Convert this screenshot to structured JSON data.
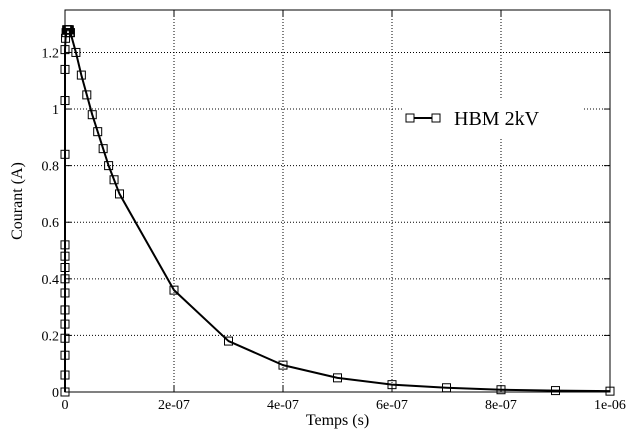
{
  "chart_data": {
    "type": "line",
    "title": "",
    "xlabel": "Temps (s)",
    "ylabel": "Courant (A)",
    "xlim": [
      0,
      1e-06
    ],
    "ylim": [
      0,
      1.35
    ],
    "grid": true,
    "legend_position": "top-right",
    "x_tick_values": [
      0,
      2e-07,
      4e-07,
      6e-07,
      8e-07,
      1e-06
    ],
    "x_tick_labels": [
      "0",
      "2e-07",
      "4e-07",
      "6e-07",
      "8e-07",
      "1e-06"
    ],
    "y_tick_values": [
      0,
      0.2,
      0.4,
      0.6,
      0.8,
      1.0,
      1.2
    ],
    "y_tick_labels": [
      "0",
      "0.2",
      "0.4",
      "0.6",
      "0.8",
      "1",
      "1.2"
    ],
    "series": [
      {
        "name": "HBM 2kV",
        "color": "#000000",
        "marker": "square",
        "x": [
          0,
          0,
          0,
          0,
          0,
          0,
          0,
          0,
          0,
          0,
          0,
          0,
          0,
          0,
          0,
          1e-09,
          2e-09,
          3e-09,
          4e-09,
          5e-09,
          6e-09,
          7e-09,
          8e-09,
          9e-09,
          1e-08,
          2e-08,
          3e-08,
          4e-08,
          5e-08,
          6e-08,
          7e-08,
          8e-08,
          9e-08,
          1e-07,
          2e-07,
          3e-07,
          4e-07,
          5e-07,
          6e-07,
          7e-07,
          8e-07,
          9e-07,
          1e-06
        ],
        "y": [
          0,
          0.06,
          0.13,
          0.19,
          0.24,
          0.29,
          0.35,
          0.4,
          0.44,
          0.48,
          0.52,
          0.84,
          1.03,
          1.14,
          1.21,
          1.25,
          1.27,
          1.28,
          1.28,
          1.28,
          1.28,
          1.28,
          1.28,
          1.27,
          1.27,
          1.2,
          1.12,
          1.05,
          0.98,
          0.92,
          0.86,
          0.8,
          0.75,
          0.7,
          0.36,
          0.18,
          0.095,
          0.05,
          0.026,
          0.015,
          0.008,
          0.005,
          0.003
        ]
      }
    ]
  }
}
